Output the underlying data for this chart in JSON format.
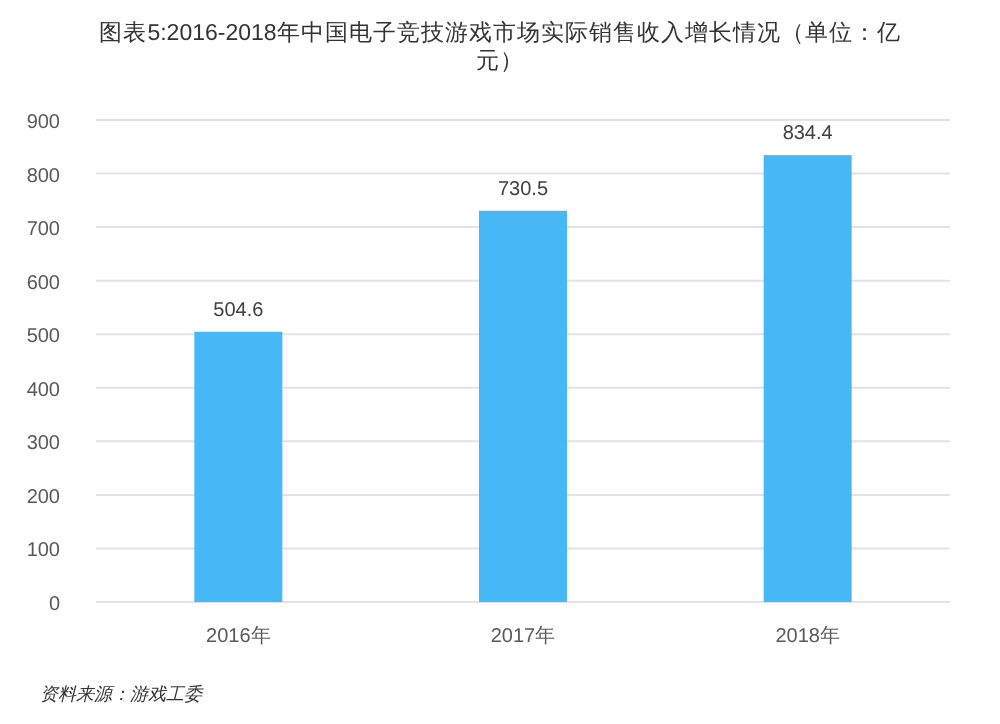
{
  "chart_data": {
    "type": "bar",
    "title": "图表5:2016-2018年中国电子竞技游戏市场实际销售收入增长情况（单位：亿元）",
    "categories": [
      "2016年",
      "2017年",
      "2018年"
    ],
    "values": [
      504.6,
      730.5,
      834.4
    ],
    "color": "#45b8f5",
    "ylim": [
      0,
      900
    ],
    "yticks": [
      0,
      100,
      200,
      300,
      400,
      500,
      600,
      700,
      800,
      900
    ],
    "grid": "y",
    "data_labels": true,
    "annotations": [
      "资料来源：游戏工委"
    ]
  }
}
